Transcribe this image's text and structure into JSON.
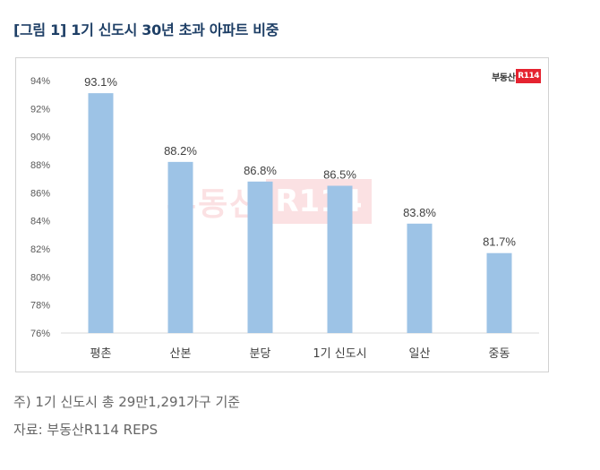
{
  "figure": {
    "title": "[그림 1] 1기 신도시 30년 초과 아파트 비중"
  },
  "logo": {
    "text": "부동산",
    "mark": "R114"
  },
  "watermark": {
    "text": "부동산",
    "mark": "R114"
  },
  "chart_data": {
    "type": "bar",
    "title": "",
    "xlabel": "",
    "ylabel": "",
    "categories": [
      "평촌",
      "산본",
      "분당",
      "1기 신도시",
      "일산",
      "중동"
    ],
    "values": [
      93.1,
      88.2,
      86.8,
      86.5,
      83.8,
      81.7
    ],
    "value_labels": [
      "93.1%",
      "88.2%",
      "86.8%",
      "86.5%",
      "83.8%",
      "81.7%"
    ],
    "ylim": [
      76,
      94
    ],
    "yticks": [
      76,
      78,
      80,
      82,
      84,
      86,
      88,
      90,
      92,
      94
    ],
    "ytick_labels": [
      "76%",
      "78%",
      "80%",
      "82%",
      "84%",
      "86%",
      "88%",
      "90%",
      "92%",
      "94%"
    ],
    "grid": false,
    "legend": "none",
    "bar_color": "#9dc3e6"
  },
  "notes": {
    "note1": "주) 1기 신도시 총 29만1,291가구 기준",
    "note2": "자료: 부동산R114 REPS"
  }
}
